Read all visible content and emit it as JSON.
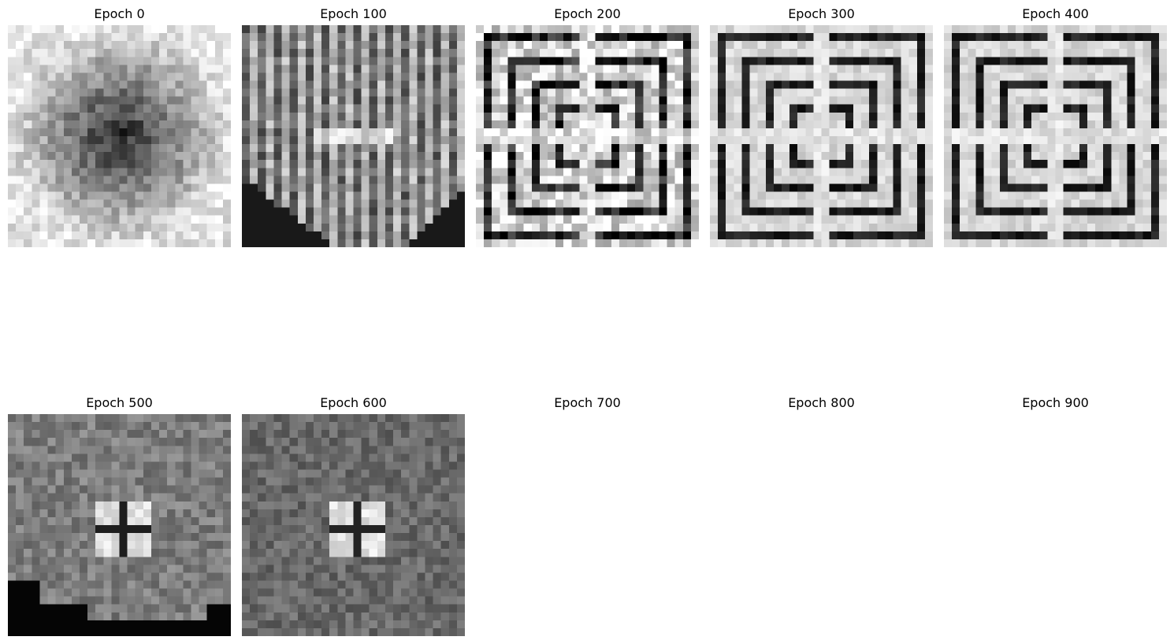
{
  "figure": {
    "panels": [
      {
        "title": "Epoch 0",
        "pattern": "dark-noisy-blob",
        "has_image": true
      },
      {
        "title": "Epoch 100",
        "pattern": "vertical-stripes-with-dark-lower-corners",
        "has_image": true
      },
      {
        "title": "Epoch 200",
        "pattern": "nested-corner-stripes-noisy",
        "has_image": true
      },
      {
        "title": "Epoch 300",
        "pattern": "nested-corner-stripes",
        "has_image": true
      },
      {
        "title": "Epoch 400",
        "pattern": "nested-corner-stripes",
        "has_image": true
      },
      {
        "title": "Epoch 500",
        "pattern": "gray-noise-with-small-cross-and-dark-bottom",
        "has_image": true
      },
      {
        "title": "Epoch 600",
        "pattern": "gray-noise-with-small-cross",
        "has_image": true
      },
      {
        "title": "Epoch 700",
        "pattern": "none",
        "has_image": false
      },
      {
        "title": "Epoch 800",
        "pattern": "none",
        "has_image": false
      },
      {
        "title": "Epoch 900",
        "pattern": "none",
        "has_image": false
      }
    ],
    "colormap": "gray"
  }
}
